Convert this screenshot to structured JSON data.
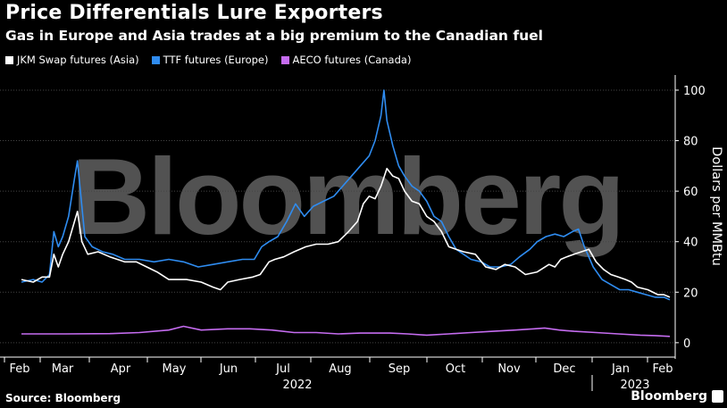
{
  "header": {
    "title": "Price Differentials Lure Exporters",
    "subtitle": "Gas in Europe and Asia trades at a big premium to the Canadian fuel"
  },
  "footer": {
    "source": "Source: Bloomberg",
    "brand": "Bloomberg",
    "watermark": "Bloomberg"
  },
  "colors": {
    "background": "#000000",
    "jkm": "#ffffff",
    "ttf": "#2f8cf0",
    "aeco": "#c56cf0",
    "grid": "#444444"
  },
  "chart_data": {
    "type": "line",
    "title": "Price Differentials Lure Exporters",
    "subtitle": "Gas in Europe and Asia trades at a big premium to the Canadian fuel",
    "ylabel": "Dollars per MMBtu",
    "ylim": [
      -5,
      106
    ],
    "y_ticks": [
      0,
      20,
      40,
      60,
      80,
      100
    ],
    "x_ticks": [
      "Feb",
      "Mar",
      "Apr",
      "May",
      "Jun",
      "Jul",
      "Aug",
      "Sep",
      "Oct",
      "Nov",
      "Dec",
      "Jan",
      "Feb"
    ],
    "year_labels": [
      "2022",
      "2023"
    ],
    "grid": true,
    "legend_position": "top-left",
    "series": [
      {
        "name": "JKM Swap futures (Asia)",
        "color": "#ffffff",
        "points": [
          [
            0,
            25
          ],
          [
            8,
            24
          ],
          [
            14,
            26
          ],
          [
            19,
            26
          ],
          [
            22,
            35
          ],
          [
            25,
            30
          ],
          [
            28,
            35
          ],
          [
            32,
            40
          ],
          [
            36,
            48
          ],
          [
            38,
            52
          ],
          [
            41,
            40
          ],
          [
            45,
            35
          ],
          [
            52,
            36
          ],
          [
            60,
            34
          ],
          [
            70,
            32
          ],
          [
            78,
            32
          ],
          [
            85,
            30
          ],
          [
            92,
            28
          ],
          [
            100,
            25
          ],
          [
            112,
            25
          ],
          [
            122,
            24
          ],
          [
            130,
            22
          ],
          [
            135,
            21
          ],
          [
            140,
            24
          ],
          [
            148,
            25
          ],
          [
            157,
            26
          ],
          [
            162,
            27
          ],
          [
            168,
            32
          ],
          [
            172,
            33
          ],
          [
            178,
            34
          ],
          [
            185,
            36
          ],
          [
            193,
            38
          ],
          [
            200,
            39
          ],
          [
            208,
            39
          ],
          [
            215,
            40
          ],
          [
            222,
            44
          ],
          [
            228,
            48
          ],
          [
            232,
            55
          ],
          [
            236,
            58
          ],
          [
            240,
            57
          ],
          [
            244,
            62
          ],
          [
            248,
            69
          ],
          [
            252,
            66
          ],
          [
            256,
            65
          ],
          [
            260,
            60
          ],
          [
            265,
            56
          ],
          [
            270,
            55
          ],
          [
            275,
            50
          ],
          [
            280,
            48
          ],
          [
            285,
            44
          ],
          [
            290,
            38
          ],
          [
            295,
            37
          ],
          [
            300,
            36
          ],
          [
            308,
            35
          ],
          [
            315,
            30
          ],
          [
            322,
            29
          ],
          [
            328,
            31
          ],
          [
            335,
            30
          ],
          [
            342,
            27
          ],
          [
            350,
            28
          ],
          [
            358,
            31
          ],
          [
            362,
            30
          ],
          [
            366,
            33
          ],
          [
            370,
            34
          ],
          [
            375,
            35
          ],
          [
            380,
            36
          ],
          [
            385,
            37
          ],
          [
            390,
            32
          ],
          [
            395,
            29
          ],
          [
            400,
            27
          ],
          [
            405,
            26
          ],
          [
            410,
            25
          ],
          [
            414,
            24
          ],
          [
            418,
            22
          ],
          [
            425,
            21
          ],
          [
            432,
            19
          ],
          [
            436,
            19
          ],
          [
            440,
            18
          ]
        ]
      },
      {
        "name": "TTF futures (Europe)",
        "color": "#2f8cf0",
        "points": [
          [
            0,
            24
          ],
          [
            8,
            25
          ],
          [
            14,
            24
          ],
          [
            19,
            27
          ],
          [
            22,
            44
          ],
          [
            25,
            38
          ],
          [
            28,
            42
          ],
          [
            32,
            50
          ],
          [
            36,
            65
          ],
          [
            38,
            72
          ],
          [
            40,
            60
          ],
          [
            43,
            42
          ],
          [
            48,
            38
          ],
          [
            55,
            36
          ],
          [
            62,
            35
          ],
          [
            70,
            33
          ],
          [
            80,
            33
          ],
          [
            90,
            32
          ],
          [
            100,
            33
          ],
          [
            110,
            32
          ],
          [
            120,
            30
          ],
          [
            130,
            31
          ],
          [
            140,
            32
          ],
          [
            150,
            33
          ],
          [
            158,
            33
          ],
          [
            163,
            38
          ],
          [
            168,
            40
          ],
          [
            174,
            42
          ],
          [
            180,
            48
          ],
          [
            186,
            55
          ],
          [
            192,
            50
          ],
          [
            198,
            54
          ],
          [
            205,
            56
          ],
          [
            212,
            58
          ],
          [
            218,
            62
          ],
          [
            224,
            66
          ],
          [
            230,
            70
          ],
          [
            236,
            74
          ],
          [
            240,
            80
          ],
          [
            244,
            90
          ],
          [
            246,
            100
          ],
          [
            248,
            88
          ],
          [
            252,
            78
          ],
          [
            256,
            70
          ],
          [
            260,
            66
          ],
          [
            265,
            62
          ],
          [
            270,
            60
          ],
          [
            275,
            56
          ],
          [
            280,
            50
          ],
          [
            285,
            48
          ],
          [
            290,
            42
          ],
          [
            295,
            37
          ],
          [
            300,
            35
          ],
          [
            305,
            33
          ],
          [
            312,
            32
          ],
          [
            318,
            30
          ],
          [
            325,
            30
          ],
          [
            332,
            31
          ],
          [
            338,
            34
          ],
          [
            345,
            37
          ],
          [
            350,
            40
          ],
          [
            356,
            42
          ],
          [
            362,
            43
          ],
          [
            368,
            42
          ],
          [
            374,
            44
          ],
          [
            378,
            45
          ],
          [
            382,
            38
          ],
          [
            388,
            30
          ],
          [
            394,
            25
          ],
          [
            400,
            23
          ],
          [
            406,
            21
          ],
          [
            412,
            21
          ],
          [
            418,
            20
          ],
          [
            424,
            19
          ],
          [
            430,
            18
          ],
          [
            436,
            18
          ],
          [
            440,
            17
          ]
        ]
      },
      {
        "name": "AECO futures (Canada)",
        "color": "#c56cf0",
        "points": [
          [
            0,
            3.5
          ],
          [
            30,
            3.5
          ],
          [
            60,
            3.6
          ],
          [
            80,
            4
          ],
          [
            100,
            5
          ],
          [
            110,
            6.5
          ],
          [
            122,
            5
          ],
          [
            140,
            5.5
          ],
          [
            155,
            5.5
          ],
          [
            170,
            5
          ],
          [
            185,
            4
          ],
          [
            200,
            4
          ],
          [
            215,
            3.5
          ],
          [
            230,
            3.8
          ],
          [
            250,
            3.8
          ],
          [
            262,
            3.5
          ],
          [
            275,
            3
          ],
          [
            290,
            3.5
          ],
          [
            305,
            4
          ],
          [
            320,
            4.5
          ],
          [
            335,
            5
          ],
          [
            348,
            5.5
          ],
          [
            355,
            5.8
          ],
          [
            365,
            5
          ],
          [
            375,
            4.5
          ],
          [
            390,
            4
          ],
          [
            405,
            3.5
          ],
          [
            420,
            3
          ],
          [
            430,
            2.8
          ],
          [
            440,
            2.5
          ]
        ]
      }
    ]
  }
}
